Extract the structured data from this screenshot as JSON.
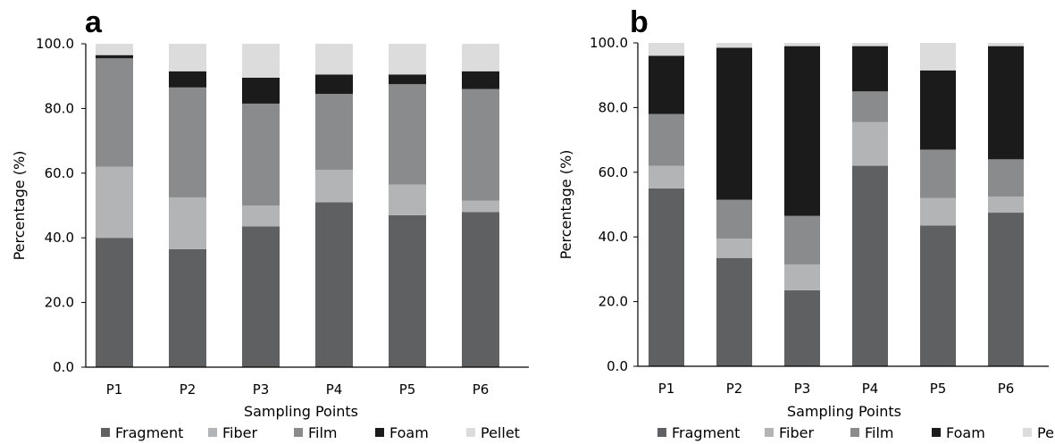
{
  "colors": {
    "Fragment": "#5f6062",
    "Fiber": "#b3b4b6",
    "Film": "#8a8b8d",
    "Foam": "#1b1b1c",
    "Pellet": "#dcdcdc"
  },
  "chart_data": [
    {
      "type": "bar",
      "stacked": true,
      "panel_label": "a",
      "categories": [
        "P1",
        "P2",
        "P3",
        "P4",
        "P5",
        "P6"
      ],
      "series": [
        {
          "name": "Fragment",
          "values": [
            40.0,
            36.5,
            43.5,
            51.0,
            47.0,
            48.0
          ]
        },
        {
          "name": "Fiber",
          "values": [
            22.0,
            16.0,
            6.5,
            10.0,
            9.5,
            3.5
          ]
        },
        {
          "name": "Film",
          "values": [
            33.5,
            34.0,
            31.5,
            23.5,
            31.0,
            34.5
          ]
        },
        {
          "name": "Foam",
          "values": [
            1.0,
            5.0,
            8.0,
            6.0,
            3.0,
            5.5
          ]
        },
        {
          "name": "Pellet",
          "values": [
            3.5,
            8.5,
            10.5,
            9.5,
            9.5,
            8.5
          ]
        }
      ],
      "ylabel": "Percentage (%)",
      "xlabel": "Sampling Points",
      "ylim": [
        0,
        100
      ],
      "yticks": [
        "0.0",
        "20.0",
        "40.0",
        "60.0",
        "80.0",
        "100.0"
      ],
      "legend_position": "bottom"
    },
    {
      "type": "bar",
      "stacked": true,
      "panel_label": "b",
      "categories": [
        "P1",
        "P2",
        "P3",
        "P4",
        "P5",
        "P6"
      ],
      "series": [
        {
          "name": "Fragment",
          "values": [
            55.0,
            33.5,
            23.5,
            62.0,
            43.5,
            47.5
          ]
        },
        {
          "name": "Fiber",
          "values": [
            7.0,
            6.0,
            8.0,
            13.5,
            8.5,
            5.0
          ]
        },
        {
          "name": "Film",
          "values": [
            16.0,
            12.0,
            15.0,
            9.5,
            15.0,
            11.5
          ]
        },
        {
          "name": "Foam",
          "values": [
            18.0,
            47.0,
            52.5,
            14.0,
            24.5,
            35.0
          ]
        },
        {
          "name": "Pellet",
          "values": [
            4.0,
            1.5,
            1.0,
            1.0,
            8.5,
            1.0
          ]
        }
      ],
      "ylabel": "Percentage (%)",
      "xlabel": "Sampling Points",
      "ylim": [
        0,
        100
      ],
      "yticks": [
        "0.0",
        "20.0",
        "40.0",
        "60.0",
        "80.0",
        "100.0"
      ],
      "legend_position": "bottom"
    }
  ]
}
